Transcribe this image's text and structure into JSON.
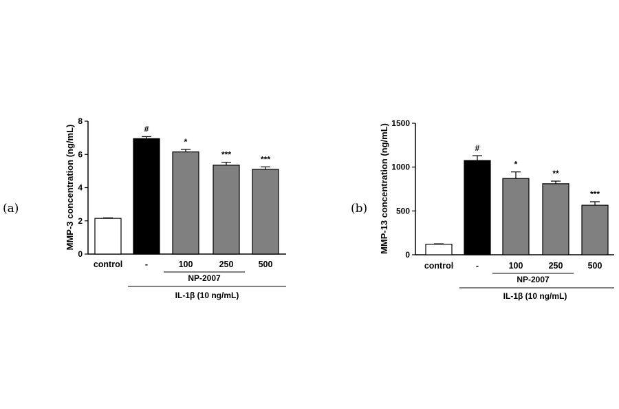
{
  "chart_data": [
    {
      "type": "bar",
      "panel_label": "(a)",
      "ylabel": "MMP-3 concentration (ng/mL)",
      "ylim": [
        0,
        8
      ],
      "yticks": [
        0,
        2,
        4,
        6,
        8
      ],
      "categories": [
        "control",
        "-",
        "100",
        "250",
        "500"
      ],
      "values": [
        2.15,
        6.95,
        6.15,
        5.35,
        5.1
      ],
      "errors": [
        0.03,
        0.12,
        0.15,
        0.18,
        0.15
      ],
      "significance": [
        "",
        "#",
        "*",
        "***",
        "***"
      ],
      "bar_colors": [
        "#ffffff",
        "#000000",
        "#808080",
        "#808080",
        "#808080"
      ],
      "group_labels": {
        "inner": "NP-2007",
        "outer": "IL-1β (10 ng/mL)"
      }
    },
    {
      "type": "bar",
      "panel_label": "(b)",
      "ylabel": "MMP-13 concentration (ng/mL)",
      "ylim": [
        0,
        1500
      ],
      "yticks": [
        0,
        500,
        1000,
        1500
      ],
      "categories": [
        "control",
        "-",
        "100",
        "250",
        "500"
      ],
      "values": [
        120,
        1075,
        870,
        810,
        565
      ],
      "errors": [
        5,
        55,
        75,
        30,
        40
      ],
      "significance": [
        "",
        "#",
        "*",
        "**",
        "***"
      ],
      "bar_colors": [
        "#ffffff",
        "#000000",
        "#808080",
        "#808080",
        "#808080"
      ],
      "group_labels": {
        "inner": "NP-2007",
        "outer": "IL-1β (10 ng/mL)"
      }
    }
  ]
}
